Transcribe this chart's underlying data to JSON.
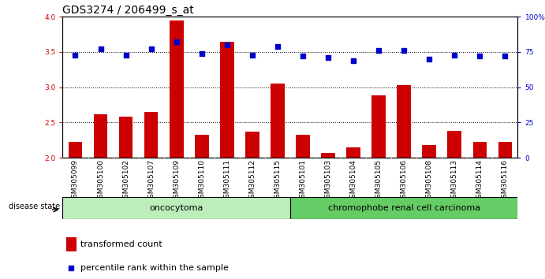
{
  "title": "GDS3274 / 206499_s_at",
  "samples": [
    "GSM305099",
    "GSM305100",
    "GSM305102",
    "GSM305107",
    "GSM305109",
    "GSM305110",
    "GSM305111",
    "GSM305112",
    "GSM305115",
    "GSM305101",
    "GSM305103",
    "GSM305104",
    "GSM305105",
    "GSM305106",
    "GSM305108",
    "GSM305113",
    "GSM305114",
    "GSM305116"
  ],
  "red_bars": [
    2.22,
    2.62,
    2.58,
    2.65,
    3.95,
    2.33,
    3.65,
    2.37,
    3.05,
    2.33,
    2.07,
    2.14,
    2.88,
    3.03,
    2.18,
    2.38,
    2.22,
    2.22
  ],
  "blue_dots": [
    73,
    77,
    73,
    77,
    82,
    74,
    80,
    73,
    79,
    72,
    71,
    69,
    76,
    76,
    70,
    73,
    72,
    72
  ],
  "ylim_left": [
    2.0,
    4.0
  ],
  "ylim_right": [
    0,
    100
  ],
  "yticks_left": [
    2.0,
    2.5,
    3.0,
    3.5,
    4.0
  ],
  "yticks_right": [
    0,
    25,
    50,
    75,
    100
  ],
  "dotted_lines": [
    2.5,
    3.0,
    3.5
  ],
  "bar_color": "#cc0000",
  "dot_color": "#0000cc",
  "group1_label": "oncocytoma",
  "group2_label": "chromophobe renal cell carcinoma",
  "group1_count": 9,
  "group2_count": 9,
  "disease_label": "disease state",
  "legend_bar": "transformed count",
  "legend_dot": "percentile rank within the sample",
  "group1_color": "#bbeebb",
  "group2_color": "#66cc66",
  "bar_width": 0.55,
  "title_fontsize": 10,
  "tick_fontsize": 6.5,
  "label_fontsize": 8,
  "xtick_bg": "#cccccc"
}
